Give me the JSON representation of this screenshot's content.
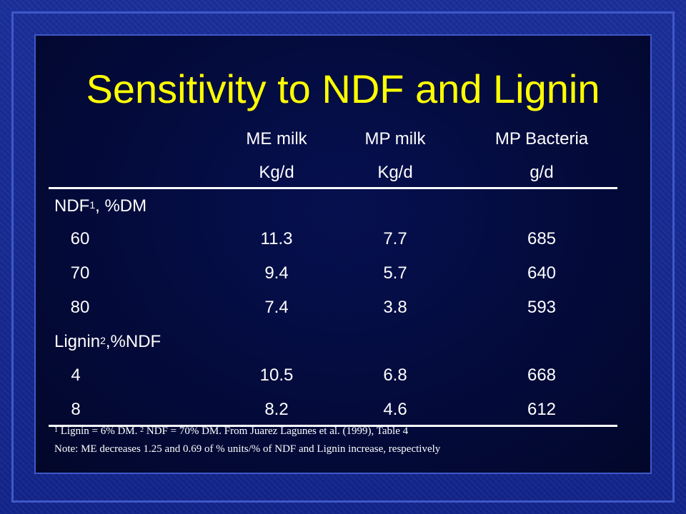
{
  "slide": {
    "title": "Sensitivity to NDF and Lignin",
    "columns": [
      {
        "name": "ME milk",
        "unit": "Kg/d"
      },
      {
        "name": "MP milk",
        "unit": "Kg/d"
      },
      {
        "name": "MP Bacteria",
        "unit": "g/d"
      }
    ],
    "sections": [
      {
        "label": "NDF",
        "label_sup": "1",
        "label_suffix": ", %DM",
        "rows": [
          {
            "level": "60",
            "me_milk": "11.3",
            "mp_milk": "7.7",
            "mp_bacteria": "685"
          },
          {
            "level": "70",
            "me_milk": "9.4",
            "mp_milk": "5.7",
            "mp_bacteria": "640"
          },
          {
            "level": "80",
            "me_milk": "7.4",
            "mp_milk": "3.8",
            "mp_bacteria": "593"
          }
        ]
      },
      {
        "label": "Lignin",
        "label_sup": "2",
        "label_suffix": ",%NDF",
        "rows": [
          {
            "level": "4",
            "me_milk": "10.5",
            "mp_milk": "6.8",
            "mp_bacteria": "668"
          },
          {
            "level": "8",
            "me_milk": "8.2",
            "mp_milk": "4.6",
            "mp_bacteria": "612"
          }
        ]
      }
    ],
    "footnotes": {
      "fn1_mark": "1",
      "fn1_text": " Lignin = 6% DM. ",
      "fn2_mark": "2",
      "fn2_text": " NDF = 70% DM. From Juarez Lagunes et al. (1999), Table 4",
      "note": "Note: ME decreases 1.25 and 0.69 of % units/% of NDF and Lignin increase, respectively"
    },
    "colors": {
      "title": "#ffff00",
      "text": "#ffffff",
      "border": "#3f58c8",
      "background": "#13248a"
    }
  }
}
